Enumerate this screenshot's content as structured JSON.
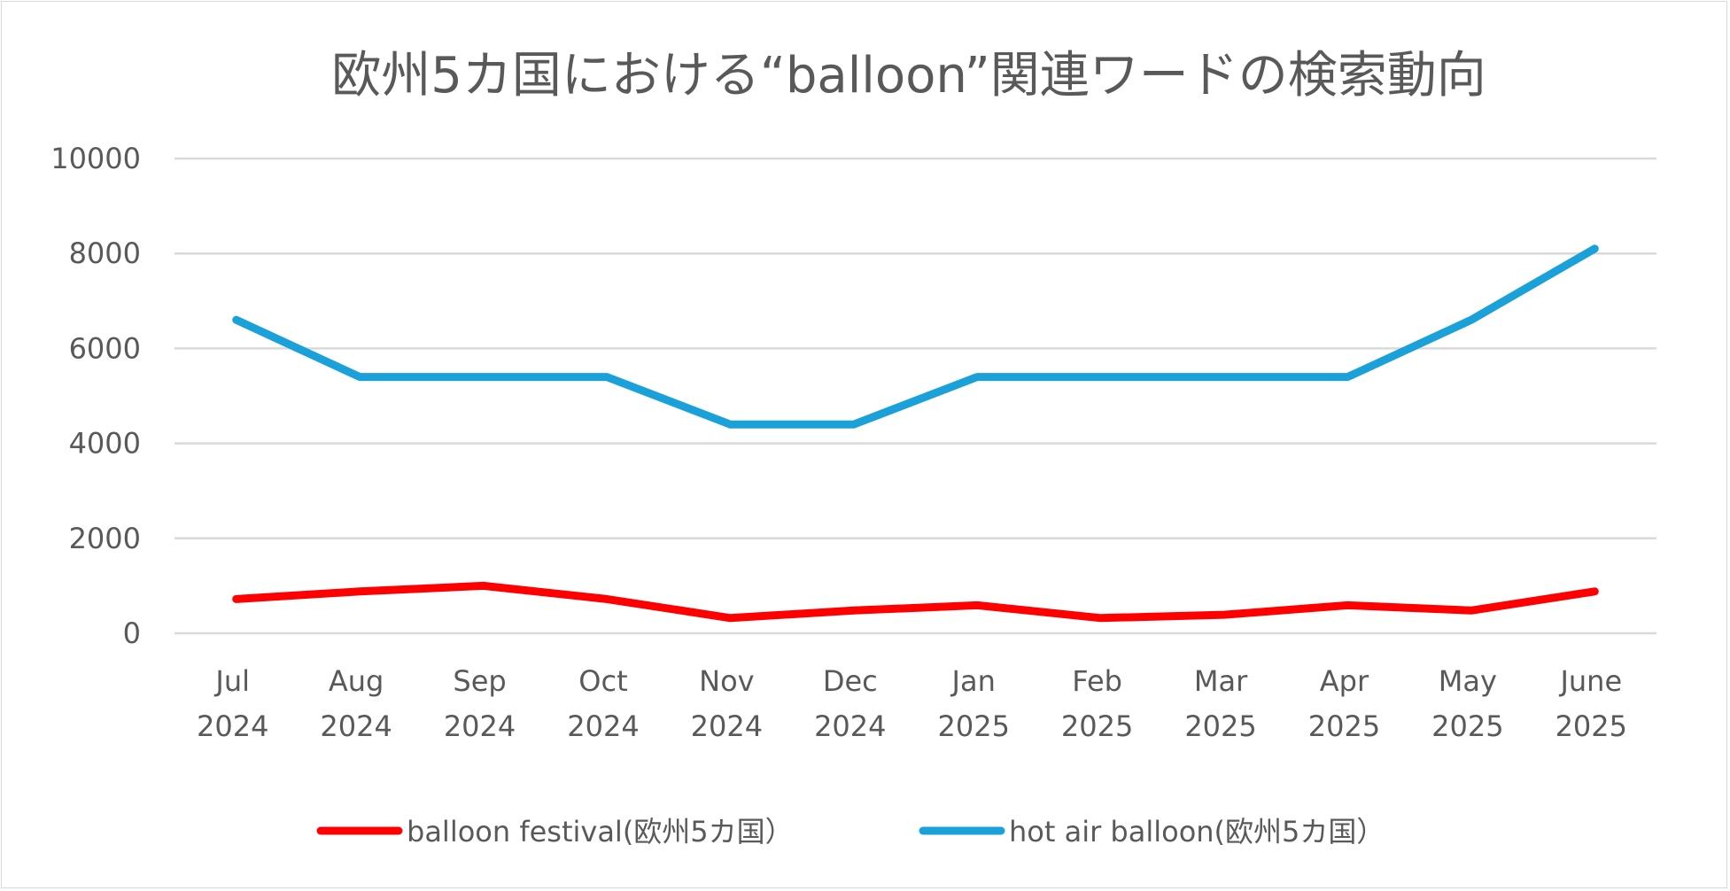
{
  "chart_data": {
    "type": "line",
    "title": "欧州5カ国における“balloon”関連ワードの検索動向",
    "categories": [
      [
        "Jul",
        "2024"
      ],
      [
        "Aug",
        "2024"
      ],
      [
        "Sep",
        "2024"
      ],
      [
        "Oct",
        "2024"
      ],
      [
        "Nov",
        "2024"
      ],
      [
        "Dec",
        "2024"
      ],
      [
        "Jan",
        "2025"
      ],
      [
        "Feb",
        "2025"
      ],
      [
        "Mar",
        "2025"
      ],
      [
        "Apr",
        "2025"
      ],
      [
        "May",
        "2025"
      ],
      [
        "June",
        "2025"
      ]
    ],
    "ylim": [
      0,
      10000
    ],
    "yticks": [
      "0",
      "2000",
      "4000",
      "6000",
      "8000",
      "10000"
    ],
    "grid": true,
    "legend_position": "bottom",
    "series": [
      {
        "name": "balloon festival(欧州5カ国）",
        "color": "#ff0000",
        "values": [
          720,
          880,
          1000,
          720,
          320,
          480,
          590,
          320,
          390,
          590,
          480,
          880
        ]
      },
      {
        "name": "hot air balloon(欧州5カ国）",
        "color": "#1ba1d9",
        "values": [
          6600,
          5400,
          5400,
          5400,
          4400,
          4400,
          5400,
          5400,
          5400,
          5400,
          6600,
          8100
        ]
      }
    ]
  }
}
